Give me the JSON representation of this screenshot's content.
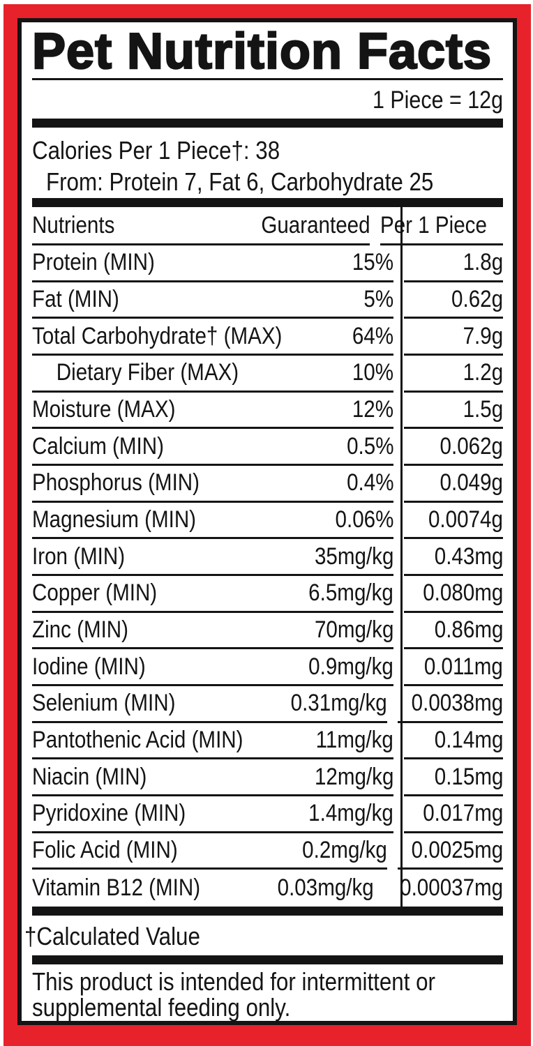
{
  "label": {
    "title": "Pet Nutrition Facts",
    "serving_info": "1 Piece = 12g",
    "calories_line": "Calories Per 1 Piece†: 38",
    "calories_from_line": "From: Protein 7, Fat 6, Carbohydrate 25",
    "table": {
      "headers": {
        "nutrients": "Nutrients",
        "guaranteed": "Guaranteed",
        "per_piece": "Per 1 Piece"
      },
      "rows": [
        {
          "nutrient": "Protein (MIN)",
          "guaranteed": "15%",
          "per_piece": "1.8g",
          "indent": false
        },
        {
          "nutrient": "Fat (MIN)",
          "guaranteed": "5%",
          "per_piece": "0.62g",
          "indent": false
        },
        {
          "nutrient": "Total Carbohydrate† (MAX)",
          "guaranteed": "64%",
          "per_piece": "7.9g",
          "indent": false
        },
        {
          "nutrient": "Dietary Fiber (MAX)",
          "guaranteed": "10%",
          "per_piece": "1.2g",
          "indent": true
        },
        {
          "nutrient": "Moisture (MAX)",
          "guaranteed": "12%",
          "per_piece": "1.5g",
          "indent": false
        },
        {
          "nutrient": "Calcium (MIN)",
          "guaranteed": "0.5%",
          "per_piece": "0.062g",
          "indent": false
        },
        {
          "nutrient": "Phosphorus (MIN)",
          "guaranteed": "0.4%",
          "per_piece": "0.049g",
          "indent": false
        },
        {
          "nutrient": "Magnesium (MIN)",
          "guaranteed": "0.06%",
          "per_piece": "0.0074g",
          "indent": false
        },
        {
          "nutrient": "Iron (MIN)",
          "guaranteed": "35mg/kg",
          "per_piece": "0.43mg",
          "indent": false
        },
        {
          "nutrient": "Copper (MIN)",
          "guaranteed": "6.5mg/kg",
          "per_piece": "0.080mg",
          "indent": false
        },
        {
          "nutrient": "Zinc (MIN)",
          "guaranteed": "70mg/kg",
          "per_piece": "0.86mg",
          "indent": false
        },
        {
          "nutrient": "Iodine (MIN)",
          "guaranteed": "0.9mg/kg",
          "per_piece": "0.011mg",
          "indent": false
        },
        {
          "nutrient": "Selenium (MIN)",
          "guaranteed": "0.31mg/kg",
          "per_piece": "0.0038mg",
          "indent": false
        },
        {
          "nutrient": "Pantothenic Acid (MIN)",
          "guaranteed": "11mg/kg",
          "per_piece": "0.14mg",
          "indent": false
        },
        {
          "nutrient": "Niacin (MIN)",
          "guaranteed": "12mg/kg",
          "per_piece": "0.15mg",
          "indent": false
        },
        {
          "nutrient": "Pyridoxine (MIN)",
          "guaranteed": "1.4mg/kg",
          "per_piece": "0.017mg",
          "indent": false
        },
        {
          "nutrient": "Folic Acid (MIN)",
          "guaranteed": "0.2mg/kg",
          "per_piece": "0.0025mg",
          "indent": false
        },
        {
          "nutrient": "Vitamin B12 (MIN)",
          "guaranteed": "0.03mg/kg",
          "per_piece": "0.00037mg",
          "indent": false
        }
      ]
    },
    "footnote": "†Calculated Value",
    "disclaimer_lines": [
      "This product is intended for intermittent or",
      "supplemental feeding only."
    ],
    "colors": {
      "frame_red": "#e7222b",
      "ink": "#141414"
    }
  }
}
